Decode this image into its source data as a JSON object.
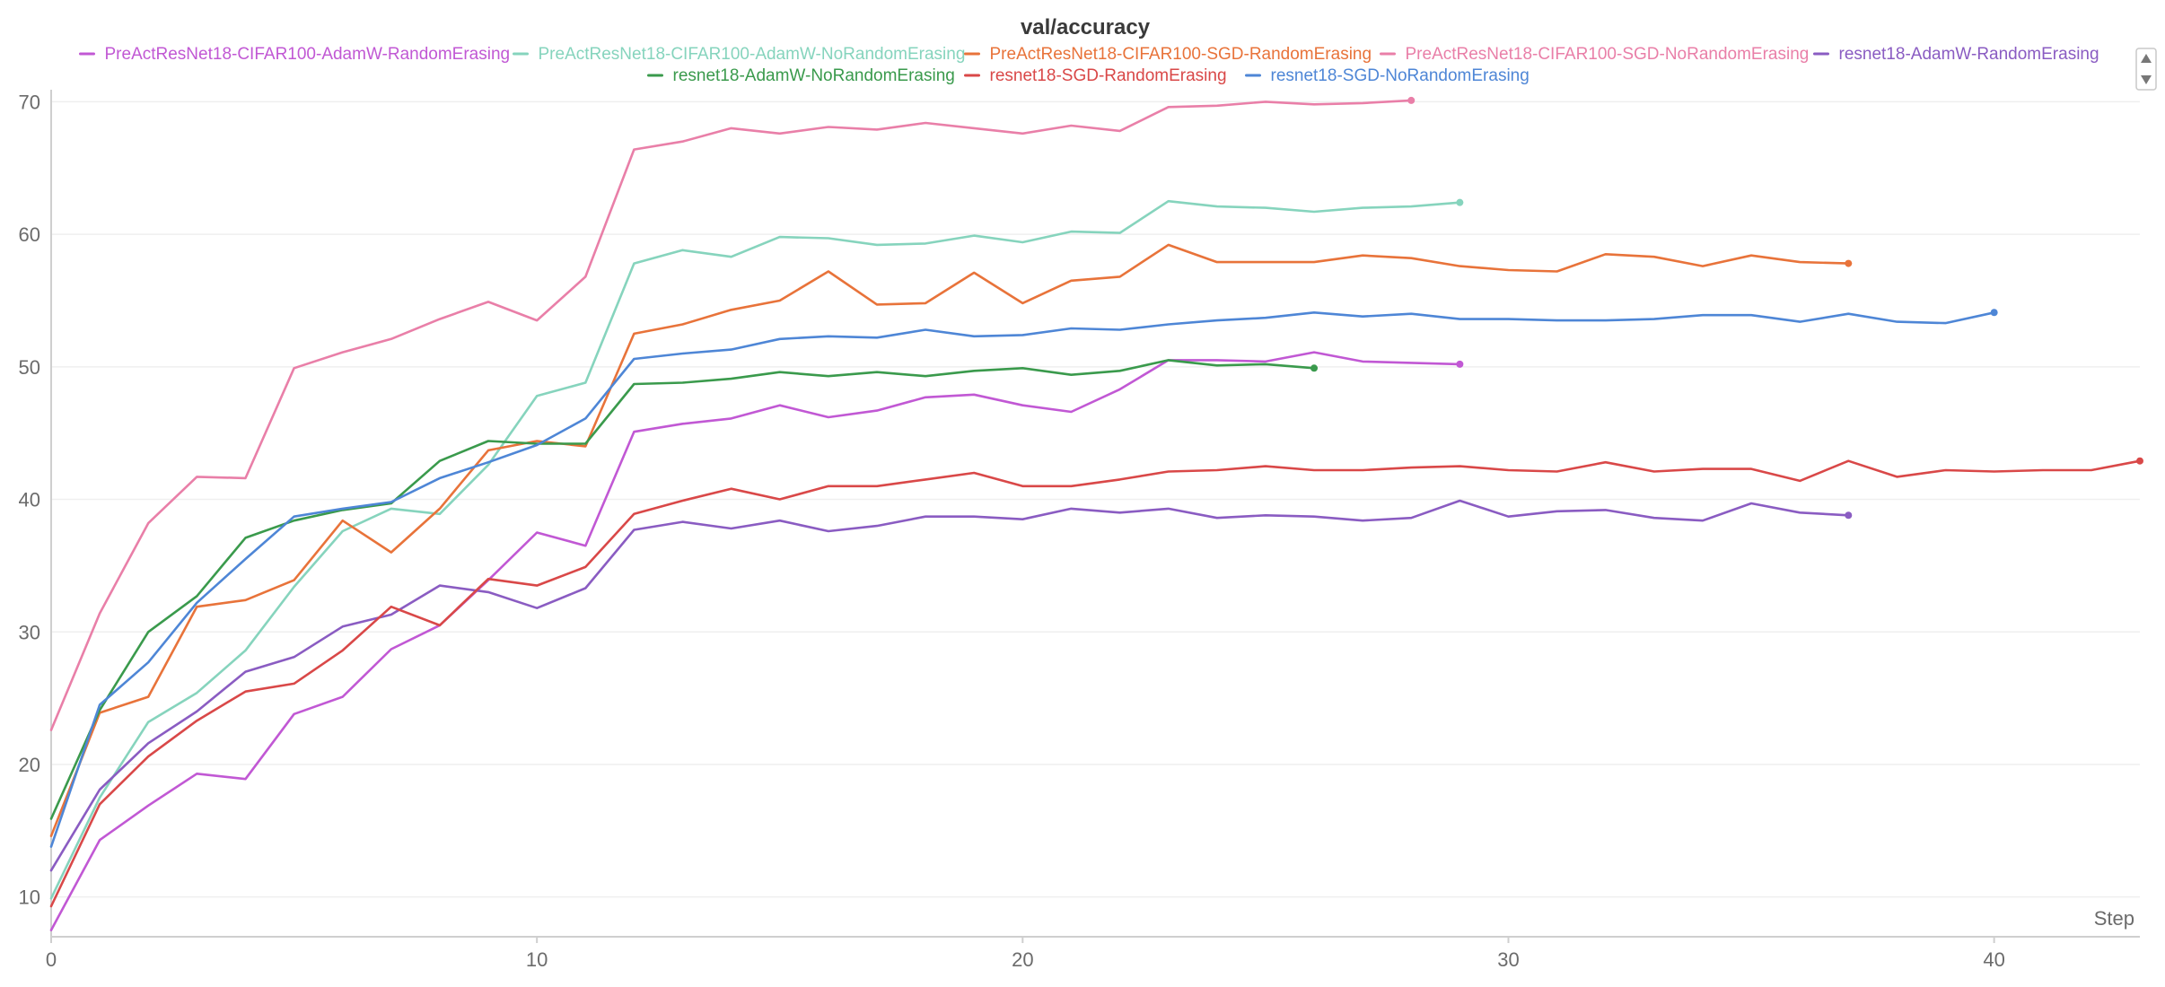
{
  "chart_data": {
    "type": "line",
    "title": "val/accuracy",
    "xlabel": "Step",
    "ylabel": "",
    "xlim": [
      0,
      43
    ],
    "ylim": [
      7,
      70.5
    ],
    "xticks": [
      0,
      10,
      20,
      30,
      40
    ],
    "yticks": [
      10,
      20,
      30,
      40,
      50,
      60,
      70
    ],
    "grid": true,
    "legend_position": "top",
    "series": [
      {
        "name": "PreActResNet18-CIFAR100-AdamW-RandomErasing",
        "color": "#c158d4",
        "x": [
          0,
          1,
          2,
          3,
          4,
          5,
          6,
          7,
          8,
          9,
          10,
          11,
          12,
          13,
          14,
          15,
          16,
          17,
          18,
          19,
          20,
          21,
          22,
          23,
          24,
          25,
          26,
          27,
          28,
          29
        ],
        "y": [
          7.5,
          14.3,
          16.9,
          19.3,
          18.9,
          23.8,
          25.1,
          28.7,
          30.5,
          33.9,
          37.5,
          36.5,
          45.1,
          45.7,
          46.1,
          47.1,
          46.2,
          46.7,
          47.7,
          47.9,
          47.1,
          46.6,
          48.3,
          50.5,
          50.5,
          50.4,
          51.1,
          50.4,
          50.3,
          50.2
        ]
      },
      {
        "name": "PreActResNet18-CIFAR100-AdamW-NoRandomErasing",
        "color": "#86d4bd",
        "x": [
          0,
          1,
          2,
          3,
          4,
          5,
          6,
          7,
          8,
          9,
          10,
          11,
          12,
          13,
          14,
          15,
          16,
          17,
          18,
          19,
          20,
          21,
          22,
          23,
          24,
          25,
          26,
          27,
          28,
          29
        ],
        "y": [
          9.9,
          17.5,
          23.2,
          25.4,
          28.6,
          33.4,
          37.6,
          39.3,
          38.9,
          42.6,
          47.8,
          48.8,
          57.8,
          58.8,
          58.3,
          59.8,
          59.7,
          59.2,
          59.3,
          59.9,
          59.4,
          60.2,
          60.1,
          62.5,
          62.1,
          62.0,
          61.7,
          62.0,
          62.1,
          62.4
        ]
      },
      {
        "name": "PreActResNet18-CIFAR100-SGD-RandomErasing",
        "color": "#e8733a",
        "x": [
          0,
          1,
          2,
          3,
          4,
          5,
          6,
          7,
          8,
          9,
          10,
          11,
          12,
          13,
          14,
          15,
          16,
          17,
          18,
          19,
          20,
          21,
          22,
          23,
          24,
          25,
          26,
          27,
          28,
          29,
          30,
          31,
          32,
          33,
          34,
          35,
          36,
          37
        ],
        "y": [
          14.6,
          23.9,
          25.1,
          31.9,
          32.4,
          33.9,
          38.4,
          36.0,
          39.3,
          43.7,
          44.4,
          44.0,
          52.5,
          53.2,
          54.3,
          55.0,
          57.2,
          54.7,
          54.8,
          57.1,
          54.8,
          56.5,
          56.8,
          59.2,
          57.9,
          57.9,
          57.9,
          58.4,
          58.2,
          57.6,
          57.3,
          57.2,
          58.5,
          58.3,
          57.6,
          58.4,
          57.9,
          57.8
        ]
      },
      {
        "name": "PreActResNet18-CIFAR100-SGD-NoRandomErasing",
        "color": "#e97fa8",
        "x": [
          0,
          1,
          2,
          3,
          4,
          5,
          6,
          7,
          8,
          9,
          10,
          11,
          12,
          13,
          14,
          15,
          16,
          17,
          18,
          19,
          20,
          21,
          22,
          23,
          24,
          25,
          26,
          27,
          28
        ],
        "y": [
          22.6,
          31.4,
          38.2,
          41.7,
          41.6,
          49.9,
          51.1,
          52.1,
          53.6,
          54.9,
          53.5,
          56.8,
          66.4,
          67.0,
          68.0,
          67.6,
          68.1,
          67.9,
          68.4,
          68.0,
          67.6,
          68.2,
          67.8,
          69.6,
          69.7,
          70.0,
          69.8,
          69.9,
          70.1
        ]
      },
      {
        "name": "resnet18-AdamW-RandomErasing",
        "color": "#8a5cc2",
        "x": [
          0,
          1,
          2,
          3,
          4,
          5,
          6,
          7,
          8,
          9,
          10,
          11,
          12,
          13,
          14,
          15,
          16,
          17,
          18,
          19,
          20,
          21,
          22,
          23,
          24,
          25,
          26,
          27,
          28,
          29,
          30,
          31,
          32,
          33,
          34,
          35,
          36,
          37
        ],
        "y": [
          12.0,
          18.1,
          21.6,
          24.0,
          27.0,
          28.1,
          30.4,
          31.3,
          33.5,
          33.0,
          31.8,
          33.3,
          37.7,
          38.3,
          37.8,
          38.4,
          37.6,
          38.0,
          38.7,
          38.7,
          38.5,
          39.3,
          39.0,
          39.3,
          38.6,
          38.8,
          38.7,
          38.4,
          38.6,
          39.9,
          38.7,
          39.1,
          39.2,
          38.6,
          38.4,
          39.7,
          39.0,
          38.8
        ]
      },
      {
        "name": "resnet18-AdamW-NoRandomErasing",
        "color": "#3a9a4c",
        "x": [
          0,
          1,
          2,
          3,
          4,
          5,
          6,
          7,
          8,
          9,
          10,
          11,
          12,
          13,
          14,
          15,
          16,
          17,
          18,
          19,
          20,
          21,
          22,
          23,
          24,
          25,
          26
        ],
        "y": [
          15.9,
          24.1,
          30.0,
          32.7,
          37.1,
          38.4,
          39.2,
          39.7,
          42.9,
          44.4,
          44.2,
          44.2,
          48.7,
          48.8,
          49.1,
          49.6,
          49.3,
          49.6,
          49.3,
          49.7,
          49.9,
          49.4,
          49.7,
          50.5,
          50.1,
          50.2,
          49.9
        ]
      },
      {
        "name": "resnet18-SGD-RandomErasing",
        "color": "#d94848",
        "x": [
          0,
          1,
          2,
          3,
          4,
          5,
          6,
          7,
          8,
          9,
          10,
          11,
          12,
          13,
          14,
          15,
          16,
          17,
          18,
          19,
          20,
          21,
          22,
          23,
          24,
          25,
          26,
          27,
          28,
          29,
          30,
          31,
          32,
          33,
          34,
          35,
          36,
          37,
          38,
          39,
          40,
          41,
          42,
          43
        ],
        "y": [
          9.3,
          17.0,
          20.6,
          23.3,
          25.5,
          26.1,
          28.6,
          31.9,
          30.5,
          34.0,
          33.5,
          34.9,
          38.9,
          39.9,
          40.8,
          40.0,
          41.0,
          41.0,
          41.5,
          42.0,
          41.0,
          41.0,
          41.5,
          42.1,
          42.2,
          42.5,
          42.2,
          42.2,
          42.4,
          42.5,
          42.2,
          42.1,
          42.8,
          42.1,
          42.3,
          42.3,
          41.4,
          42.9,
          41.7,
          42.2,
          42.1,
          42.2,
          42.2,
          42.9
        ]
      },
      {
        "name": "resnet18-SGD-NoRandomErasing",
        "color": "#4e86d6",
        "x": [
          0,
          1,
          2,
          3,
          4,
          5,
          6,
          7,
          8,
          9,
          10,
          11,
          12,
          13,
          14,
          15,
          16,
          17,
          18,
          19,
          20,
          21,
          22,
          23,
          24,
          25,
          26,
          27,
          28,
          29,
          30,
          31,
          32,
          33,
          34,
          35,
          36,
          37,
          38,
          39,
          40
        ],
        "y": [
          13.8,
          24.5,
          27.7,
          32.2,
          35.5,
          38.7,
          39.3,
          39.8,
          41.6,
          42.8,
          44.1,
          46.1,
          50.6,
          51.0,
          51.3,
          52.1,
          52.3,
          52.2,
          52.8,
          52.3,
          52.4,
          52.9,
          52.8,
          53.2,
          53.5,
          53.7,
          54.1,
          53.8,
          54.0,
          53.6,
          53.6,
          53.5,
          53.5,
          53.6,
          53.9,
          53.9,
          53.4,
          54.0,
          53.4,
          53.3,
          54.1
        ]
      }
    ]
  },
  "legend": {
    "scroll_up_icon": "triangle-up-icon",
    "scroll_down_icon": "triangle-down-icon"
  }
}
